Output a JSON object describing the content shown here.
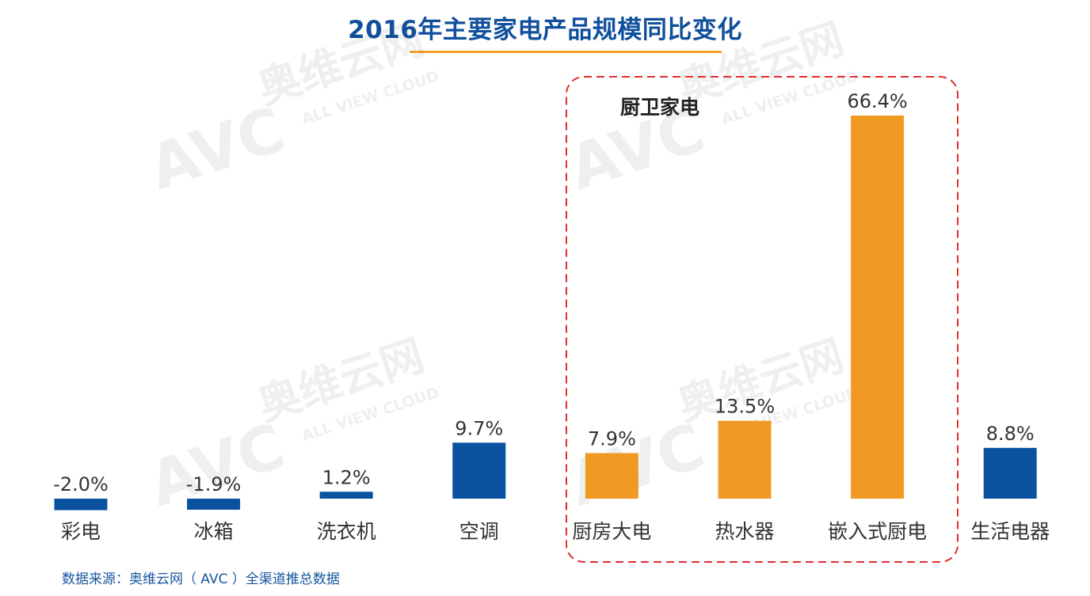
{
  "chart_data": {
    "type": "bar",
    "title": "2016年主要家电产品规模同比变化",
    "categories": [
      "彩电",
      "冰箱",
      "洗衣机",
      "空调",
      "厨房大电",
      "热水器",
      "嵌入式厨电",
      "生活电器"
    ],
    "values": [
      -2.0,
      -1.9,
      1.2,
      9.7,
      7.9,
      13.5,
      66.4,
      8.8
    ],
    "value_labels": [
      "-2.0%",
      "-1.9%",
      "1.2%",
      "9.7%",
      "7.9%",
      "13.5%",
      "66.4%",
      "8.8%"
    ],
    "groups": [
      "default",
      "default",
      "default",
      "default",
      "kitchen",
      "kitchen",
      "kitchen",
      "default"
    ],
    "unit": "%",
    "highlight_label": "厨卫家电",
    "colors": {
      "default": "#0a52a0",
      "kitchen": "#f09a24",
      "highlight_border": "#e32c2c",
      "title": "#0f4f9c",
      "title_underline": "#f2a128"
    }
  },
  "watermark": {
    "brand": "AVC",
    "chinese": "奥维云网",
    "english": "ALL VIEW CLOUD"
  },
  "footer": {
    "source": "数据来源：奥维云网（ AVC ）全渠道推总数据"
  }
}
